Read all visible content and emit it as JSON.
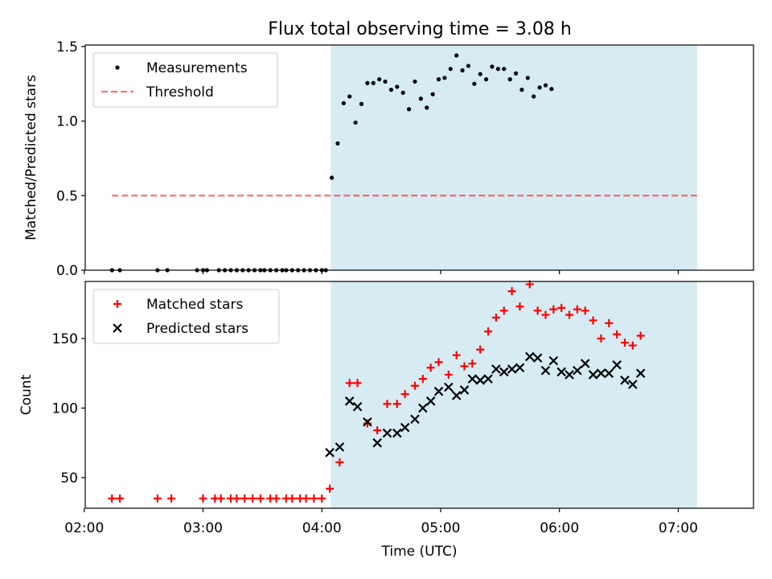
{
  "title": "Flux total observing time = 3.08 h",
  "colors": {
    "shade": "#add8e6",
    "threshold": "#ff0000",
    "matched": "#ff0000",
    "predicted": "#000000",
    "measurement": "#000000"
  },
  "chart_data": [
    {
      "type": "scatter",
      "ylabel": "Matched/Predicted stars",
      "ylim": [
        0,
        1.51
      ],
      "xlim_min": [
        120.5,
        458
      ],
      "y_ticks": [
        "0.0",
        "0.5",
        "1.0",
        "1.5"
      ],
      "y_tick_values": [
        0,
        0.5,
        1.0,
        1.5
      ],
      "shaded_range_min": [
        244.5,
        429.5
      ],
      "legend": {
        "placement": "upper-left",
        "entries": [
          "Measurements",
          "Threshold"
        ]
      },
      "threshold": {
        "name": "Threshold",
        "value": 0.5,
        "x_range_min": [
          134,
          429.5
        ]
      },
      "series": [
        {
          "name": "Measurements",
          "points": [
            [
              134,
              0
            ],
            [
              138,
              0
            ],
            [
              157,
              0
            ],
            [
              162,
              0
            ],
            [
              177,
              0
            ],
            [
              180,
              0
            ],
            [
              182,
              0
            ],
            [
              188,
              0
            ],
            [
              191,
              0
            ],
            [
              194,
              0
            ],
            [
              197,
              0
            ],
            [
              200,
              0
            ],
            [
              203,
              0
            ],
            [
              206,
              0
            ],
            [
              209,
              0
            ],
            [
              211,
              0
            ],
            [
              214,
              0
            ],
            [
              217,
              0
            ],
            [
              220,
              0
            ],
            [
              222,
              0
            ],
            [
              225,
              0
            ],
            [
              228,
              0
            ],
            [
              231,
              0
            ],
            [
              234,
              0
            ],
            [
              237,
              0
            ],
            [
              240,
              0
            ],
            [
              242,
              0
            ],
            [
              245,
              0.62
            ],
            [
              248,
              0.85
            ],
            [
              251,
              1.12
            ],
            [
              254,
              1.165
            ],
            [
              257,
              0.99
            ],
            [
              260,
              1.115
            ],
            [
              263,
              1.255
            ],
            [
              266,
              1.255
            ],
            [
              269,
              1.28
            ],
            [
              272,
              1.265
            ],
            [
              275,
              1.21
            ],
            [
              278,
              1.23
            ],
            [
              281,
              1.19
            ],
            [
              284,
              1.08
            ],
            [
              287,
              1.265
            ],
            [
              290,
              1.15
            ],
            [
              293,
              1.09
            ],
            [
              296,
              1.18
            ],
            [
              299,
              1.28
            ],
            [
              302,
              1.29
            ],
            [
              305,
              1.35
            ],
            [
              308,
              1.44
            ],
            [
              311,
              1.34
            ],
            [
              314,
              1.37
            ],
            [
              317,
              1.25
            ],
            [
              320,
              1.315
            ],
            [
              323,
              1.28
            ],
            [
              326,
              1.365
            ],
            [
              329,
              1.35
            ],
            [
              332,
              1.35
            ],
            [
              335,
              1.28
            ],
            [
              338,
              1.32
            ],
            [
              341,
              1.21
            ],
            [
              344,
              1.29
            ],
            [
              347,
              1.165
            ],
            [
              350,
              1.225
            ],
            [
              353,
              1.24
            ],
            [
              356,
              1.215
            ]
          ]
        }
      ]
    },
    {
      "type": "scatter",
      "ylabel": "Count",
      "xlabel": "Time (UTC)",
      "ylim": [
        28,
        191
      ],
      "xlim_min": [
        120.5,
        458
      ],
      "y_ticks": [
        "50",
        "100",
        "150"
      ],
      "y_tick_values": [
        50,
        100,
        150
      ],
      "x_ticks": [
        "02:00",
        "03:00",
        "04:00",
        "05:00",
        "06:00",
        "07:00"
      ],
      "x_tick_values_min": [
        120,
        180,
        240,
        300,
        360,
        420
      ],
      "shaded_range_min": [
        244.5,
        429.5
      ],
      "legend": {
        "placement": "upper-left",
        "entries": [
          "Matched stars",
          "Predicted stars"
        ]
      },
      "series": [
        {
          "name": "Matched stars",
          "marker": "plus",
          "points": [
            [
              134,
              35
            ],
            [
              138,
              35
            ],
            [
              157,
              35
            ],
            [
              164,
              35
            ],
            [
              180,
              35
            ],
            [
              186,
              35
            ],
            [
              189,
              35
            ],
            [
              194,
              35
            ],
            [
              197,
              35
            ],
            [
              201,
              35
            ],
            [
              205,
              35
            ],
            [
              209,
              35
            ],
            [
              214,
              35
            ],
            [
              217,
              35
            ],
            [
              222,
              35
            ],
            [
              225,
              35
            ],
            [
              229,
              35
            ],
            [
              232,
              35
            ],
            [
              236,
              35
            ],
            [
              240,
              35
            ],
            [
              244,
              42
            ],
            [
              249,
              61
            ],
            [
              254,
              118
            ],
            [
              258,
              118
            ],
            [
              263,
              89
            ],
            [
              268,
              84
            ],
            [
              273,
              103
            ],
            [
              278,
              103
            ],
            [
              282,
              110
            ],
            [
              287,
              116
            ],
            [
              291,
              121
            ],
            [
              295,
              129
            ],
            [
              299,
              133
            ],
            [
              304,
              124
            ],
            [
              308,
              138
            ],
            [
              312,
              130
            ],
            [
              316,
              132
            ],
            [
              320,
              142
            ],
            [
              324,
              155
            ],
            [
              328,
              165
            ],
            [
              332,
              170
            ],
            [
              336,
              184
            ],
            [
              340,
              173
            ],
            [
              345,
              189
            ],
            [
              349,
              170
            ],
            [
              353,
              167
            ],
            [
              357,
              171
            ],
            [
              361,
              172
            ],
            [
              365,
              167
            ],
            [
              369,
              171
            ],
            [
              373,
              170
            ],
            [
              377,
              163
            ],
            [
              381,
              150
            ],
            [
              385,
              161
            ],
            [
              389,
              153
            ],
            [
              393,
              147
            ],
            [
              397,
              145
            ],
            [
              401,
              152
            ]
          ]
        },
        {
          "name": "Predicted stars",
          "marker": "x",
          "points": [
            [
              244,
              68
            ],
            [
              249,
              72
            ],
            [
              254,
              105
            ],
            [
              258,
              101
            ],
            [
              263,
              90
            ],
            [
              268,
              75
            ],
            [
              273,
              82
            ],
            [
              278,
              82
            ],
            [
              282,
              86
            ],
            [
              287,
              92
            ],
            [
              291,
              100
            ],
            [
              295,
              105
            ],
            [
              299,
              112
            ],
            [
              304,
              115
            ],
            [
              308,
              109
            ],
            [
              312,
              113
            ],
            [
              316,
              121
            ],
            [
              320,
              120
            ],
            [
              324,
              121
            ],
            [
              328,
              128
            ],
            [
              332,
              126
            ],
            [
              336,
              128
            ],
            [
              340,
              129
            ],
            [
              345,
              137
            ],
            [
              349,
              136
            ],
            [
              353,
              127
            ],
            [
              357,
              134
            ],
            [
              361,
              126
            ],
            [
              365,
              124
            ],
            [
              369,
              127
            ],
            [
              373,
              132
            ],
            [
              377,
              124
            ],
            [
              381,
              125
            ],
            [
              385,
              125
            ],
            [
              389,
              131
            ],
            [
              393,
              120
            ],
            [
              397,
              117
            ],
            [
              401,
              125
            ]
          ]
        }
      ]
    }
  ]
}
